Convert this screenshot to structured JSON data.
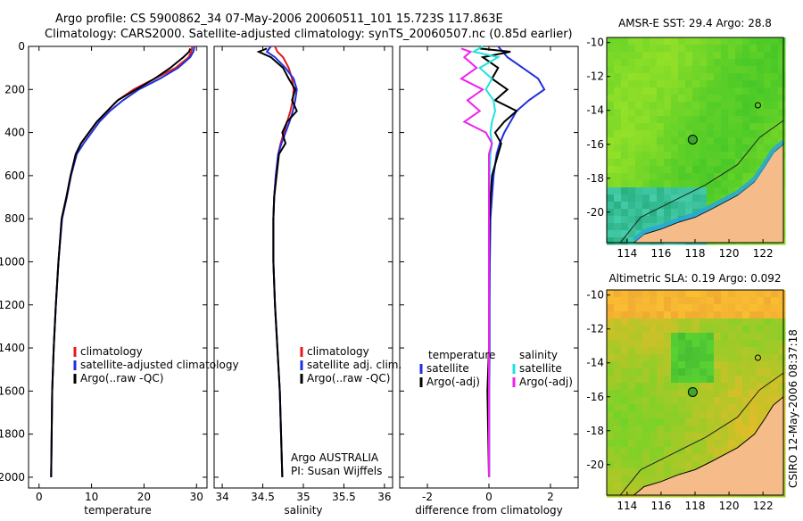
{
  "header": {
    "line1": "Argo profile: CS 5900862_34 07-May-2006 20060511_101 15.723S 117.863E",
    "line2": "Climatology: CARS2000. Satellite-adjusted climatology: synTS_20060507.nc (0.85d earlier)"
  },
  "footer_stamp": "CSIRO 12-May-2006 08:37:18",
  "colors": {
    "red": "#e41a1c",
    "blue": "#1f2fdc",
    "black": "#000000",
    "cyan": "#22e0e0",
    "magenta": "#ee22ee"
  },
  "chart_data": [
    {
      "type": "line",
      "xlabel": "temperature",
      "ylabel": "",
      "xlim": [
        -2,
        32
      ],
      "ylim": [
        2050,
        0
      ],
      "xticks": [
        "0",
        "10",
        "20",
        "30"
      ],
      "xtick_values": [
        0,
        10,
        20,
        30
      ],
      "yticks": [
        "0",
        "200",
        "400",
        "600",
        "800",
        "1000",
        "1200",
        "1400",
        "1600",
        "1800",
        "2000"
      ],
      "ytick_values": [
        0,
        200,
        400,
        600,
        800,
        1000,
        1200,
        1400,
        1600,
        1800,
        2000
      ],
      "legend": [
        "climatology",
        "satellite-adjusted climatology",
        "Argo(..raw -QC)"
      ],
      "legend_colors": [
        "red",
        "blue",
        "black"
      ],
      "series": [
        {
          "name": "climatology",
          "color": "red",
          "x": [
            29.2,
            29.0,
            28.5,
            26,
            22,
            18,
            15,
            13,
            11,
            9.5,
            8,
            7,
            6,
            5.2,
            4.3,
            3.7,
            3.2,
            2.8,
            2.5,
            2.3
          ],
          "y": [
            0,
            25,
            50,
            100,
            150,
            200,
            250,
            300,
            350,
            400,
            450,
            500,
            600,
            700,
            800,
            1000,
            1200,
            1400,
            1600,
            2000
          ]
        },
        {
          "name": "satellite-adjusted climatology",
          "color": "blue",
          "x": [
            29.6,
            29.4,
            28.8,
            26.5,
            23,
            19,
            16,
            13.5,
            11.5,
            10,
            8.5,
            7.2,
            6.1,
            5.3,
            4.4,
            3.7,
            3.2,
            2.8,
            2.5,
            2.3
          ],
          "y": [
            0,
            25,
            50,
            100,
            150,
            200,
            250,
            300,
            350,
            400,
            450,
            500,
            600,
            700,
            800,
            1000,
            1200,
            1400,
            1600,
            2000
          ]
        },
        {
          "name": "Argo(..raw -QC)",
          "color": "black",
          "x": [
            28.8,
            28.6,
            27.5,
            25,
            22,
            18.5,
            15,
            13,
            11,
            9.5,
            8,
            7,
            6,
            5.2,
            4.3,
            3.7,
            3.2,
            2.8,
            2.5,
            2.3
          ],
          "y": [
            10,
            25,
            50,
            100,
            150,
            200,
            250,
            300,
            350,
            400,
            450,
            500,
            600,
            700,
            800,
            1000,
            1200,
            1400,
            1600,
            2000
          ]
        }
      ]
    },
    {
      "type": "line",
      "xlabel": "salinity",
      "xlim": [
        33.9,
        36.1
      ],
      "ylim": [
        2050,
        0
      ],
      "xticks": [
        "34",
        "34.5",
        "35",
        "35.5",
        "36"
      ],
      "xtick_values": [
        34,
        34.5,
        35,
        35.5,
        36
      ],
      "legend": [
        "climatology",
        "satellite adj. clim.",
        "Argo(..raw -QC)"
      ],
      "legend_colors": [
        "red",
        "blue",
        "black"
      ],
      "annotation": [
        "Argo AUSTRALIA",
        "PI: Susan Wijffels"
      ],
      "series": [
        {
          "name": "climatology",
          "color": "red",
          "x": [
            34.65,
            34.68,
            34.75,
            34.82,
            34.86,
            34.88,
            34.87,
            34.84,
            34.8,
            34.76,
            34.72,
            34.69,
            34.66,
            34.64,
            34.63,
            34.63,
            34.65,
            34.68,
            34.71,
            34.74
          ],
          "y": [
            0,
            25,
            50,
            100,
            150,
            200,
            250,
            300,
            350,
            400,
            450,
            500,
            600,
            700,
            800,
            1000,
            1200,
            1400,
            1600,
            2000
          ]
        },
        {
          "name": "satellite adj. clim.",
          "color": "blue",
          "x": [
            34.6,
            34.55,
            34.65,
            34.78,
            34.88,
            34.92,
            34.9,
            34.87,
            34.83,
            34.78,
            34.73,
            34.69,
            34.66,
            34.64,
            34.63,
            34.63,
            34.65,
            34.68,
            34.71,
            34.74
          ],
          "y": [
            0,
            25,
            50,
            100,
            150,
            200,
            250,
            300,
            350,
            400,
            450,
            500,
            600,
            700,
            800,
            1000,
            1200,
            1400,
            1600,
            2000
          ]
        },
        {
          "name": "Argo(..raw -QC)",
          "color": "black",
          "x": [
            34.55,
            34.45,
            34.6,
            34.75,
            34.82,
            34.9,
            34.86,
            34.92,
            34.8,
            34.74,
            34.78,
            34.7,
            34.67,
            34.64,
            34.63,
            34.63,
            34.65,
            34.68,
            34.71,
            34.74
          ],
          "y": [
            10,
            25,
            50,
            100,
            150,
            200,
            250,
            300,
            350,
            400,
            450,
            500,
            600,
            700,
            800,
            1000,
            1200,
            1400,
            1600,
            2000
          ]
        }
      ]
    },
    {
      "type": "line",
      "xlabel": "difference from climatology",
      "xlim": [
        -2.9,
        2.9
      ],
      "ylim": [
        2050,
        0
      ],
      "xticks": [
        "-2",
        "0",
        "2"
      ],
      "xtick_values": [
        -2,
        0,
        2
      ],
      "legend_title_left": "temperature",
      "legend_title_right": "salinity",
      "legend_left": [
        "satellite",
        "Argo(-adj)"
      ],
      "legend_left_colors": [
        "blue",
        "black"
      ],
      "legend_right": [
        "satellite",
        "Argo(-adj)"
      ],
      "legend_right_colors": [
        "cyan",
        "magenta"
      ],
      "series": [
        {
          "name": "temperature satellite",
          "color": "blue",
          "x": [
            0.3,
            0.45,
            0.6,
            1.1,
            1.6,
            1.8,
            1.3,
            0.9,
            0.7,
            0.5,
            0.35,
            0.25,
            0.15,
            0.1,
            0.05,
            0.03,
            0.02,
            0.02,
            0.01,
            0.01
          ],
          "y": [
            0,
            25,
            50,
            100,
            150,
            200,
            250,
            300,
            350,
            400,
            450,
            500,
            600,
            700,
            800,
            1000,
            1200,
            1400,
            1600,
            2000
          ]
        },
        {
          "name": "temperature Argo(-adj)",
          "color": "black",
          "x": [
            -0.3,
            0.7,
            -0.2,
            0.3,
            0.1,
            0.6,
            0.2,
            0.9,
            0.5,
            0.2,
            0.4,
            0.3,
            0.1,
            0.05,
            0.02,
            0.0,
            0.0,
            0.0,
            -0.05,
            0.0
          ],
          "y": [
            10,
            25,
            50,
            100,
            150,
            200,
            250,
            300,
            350,
            400,
            450,
            500,
            600,
            700,
            800,
            1000,
            1200,
            1400,
            1600,
            2000
          ]
        },
        {
          "name": "salinity satellite",
          "color": "cyan",
          "x": [
            -0.2,
            -0.5,
            0.3,
            -0.3,
            0.1,
            -0.1,
            0.15,
            0.2,
            0.1,
            0.05,
            0.1,
            0.05,
            0.02,
            0.0,
            0.0,
            0.0,
            0.0,
            0.0,
            0.0,
            0.0
          ],
          "y": [
            0,
            25,
            50,
            100,
            150,
            200,
            250,
            300,
            350,
            400,
            450,
            500,
            600,
            700,
            800,
            1000,
            1200,
            1400,
            1600,
            2000
          ]
        },
        {
          "name": "salinity Argo(-adj)",
          "color": "magenta",
          "x": [
            -0.9,
            -0.6,
            -0.8,
            -0.4,
            -0.9,
            -0.2,
            -0.7,
            -0.3,
            -0.8,
            -0.1,
            0.1,
            0.0,
            0.0,
            0.0,
            0.0,
            0.0,
            0.0,
            0.0,
            0.0,
            0.0
          ],
          "y": [
            10,
            25,
            50,
            100,
            150,
            200,
            250,
            300,
            350,
            400,
            450,
            500,
            600,
            700,
            800,
            1000,
            1200,
            1400,
            1600,
            2000
          ]
        }
      ]
    },
    {
      "type": "heatmap",
      "title": "AMSR-E SST: 29.4 Argo: 28.8",
      "xlim": [
        112.8,
        123.2
      ],
      "ylim": [
        -21.8,
        -9.7
      ],
      "xticks": [
        "114",
        "116",
        "118",
        "120",
        "122"
      ],
      "xtick_values": [
        114,
        116,
        118,
        120,
        122
      ],
      "yticks": [
        "-10",
        "-12",
        "-14",
        "-16",
        "-18",
        "-20"
      ],
      "ytick_values": [
        -10,
        -12,
        -14,
        -16,
        -18,
        -20
      ],
      "marker_lon": 117.863,
      "marker_lat": -15.723
    },
    {
      "type": "heatmap",
      "title": "Altimetric SLA: 0.19 Argo: 0.092",
      "xlim": [
        112.8,
        123.2
      ],
      "ylim": [
        -21.8,
        -9.7
      ],
      "xticks": [
        "114",
        "116",
        "118",
        "120",
        "122"
      ],
      "xtick_values": [
        114,
        116,
        118,
        120,
        122
      ],
      "yticks": [
        "-10",
        "-12",
        "-14",
        "-16",
        "-18",
        "-20"
      ],
      "ytick_values": [
        -10,
        -12,
        -14,
        -16,
        -18,
        -20
      ],
      "marker_lon": 117.863,
      "marker_lat": -15.723
    }
  ]
}
